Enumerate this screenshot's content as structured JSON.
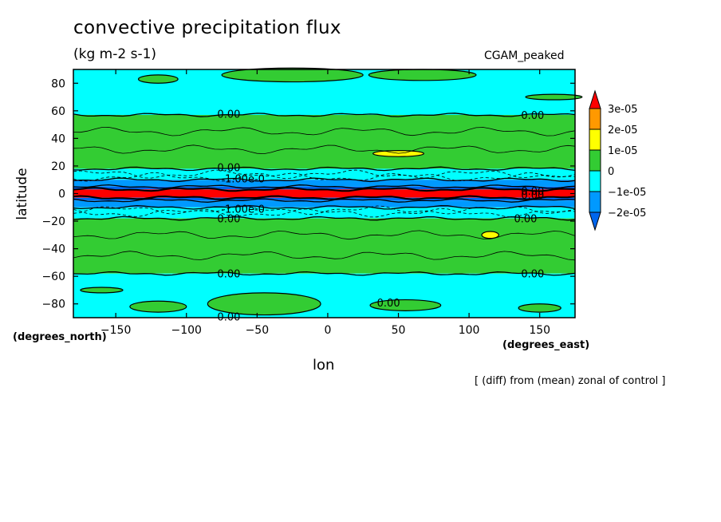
{
  "chart_data": {
    "type": "heatmap",
    "title": "convective precipitation flux",
    "units": "(kg m-2 s-1)",
    "run_name": "CGAM_peaked",
    "xlabel": "lon",
    "xunits": "(degrees_east)",
    "ylabel": "latitude",
    "yunits": "(degrees_north)",
    "xlim": [
      -180,
      175
    ],
    "ylim": [
      -90,
      90
    ],
    "x_ticks": [
      -150,
      -100,
      -50,
      0,
      50,
      100,
      150
    ],
    "x_tick_labels": [
      "−150",
      "−100",
      "−50",
      "0",
      "50",
      "100",
      "150"
    ],
    "y_ticks": [
      80,
      60,
      40,
      20,
      0,
      -20,
      -40,
      -60,
      -80
    ],
    "y_tick_labels": [
      "80",
      "60",
      "40",
      "20",
      "0",
      "−20",
      "−40",
      "−60",
      "−80"
    ],
    "colorbar": {
      "labels": [
        "3e-05",
        "2e-05",
        "1e-05",
        "0",
        "−1e-05",
        "−2e-05"
      ],
      "levels": [
        3e-05,
        2e-05,
        1e-05,
        0,
        -1e-05,
        -2e-05
      ],
      "colors": [
        "#ff0000",
        "#ff9900",
        "#ffff00",
        "#33cc33",
        "#00ffff",
        "#0099ff",
        "#0066ee"
      ]
    },
    "bands": [
      {
        "lat_min": 57,
        "lat_max": 90,
        "level": "-1e-05 to 0",
        "color": "#00ffff"
      },
      {
        "lat_min": 18,
        "lat_max": 57,
        "level": "0 to 1e-05",
        "color": "#33cc33"
      },
      {
        "lat_min": 10,
        "lat_max": 18,
        "level": "-1e-05 to 0",
        "color": "#00ffff"
      },
      {
        "lat_min": 5,
        "lat_max": 10,
        "level": "-2e-05 to -1e-05",
        "color": "#0099ff"
      },
      {
        "lat_min": 3,
        "lat_max": 5,
        "level": "< -2e-05",
        "color": "#0066ee"
      },
      {
        "lat_min": -3,
        "lat_max": 3,
        "level": "> 3e-05",
        "color": "#ff0000"
      },
      {
        "lat_min": -5,
        "lat_max": -3,
        "level": "< -2e-05",
        "color": "#0066ee"
      },
      {
        "lat_min": -10,
        "lat_max": -5,
        "level": "-2e-05 to -1e-05",
        "color": "#0099ff"
      },
      {
        "lat_min": -18,
        "lat_max": -10,
        "level": "-1e-05 to 0",
        "color": "#00ffff"
      },
      {
        "lat_min": -58,
        "lat_max": -18,
        "level": "0 to 1e-05",
        "color": "#33cc33"
      },
      {
        "lat_min": -90,
        "lat_max": -58,
        "level": "-1e-05 to 0",
        "color": "#00ffff"
      }
    ],
    "contour_labels": [
      {
        "text": "0.00",
        "lon": -70,
        "lat": 58
      },
      {
        "text": "0.00",
        "lon": 145,
        "lat": 57
      },
      {
        "text": "0.00",
        "lon": -70,
        "lat": 19
      },
      {
        "text": "0.00",
        "lon": -70,
        "lat": -18
      },
      {
        "text": "0.00",
        "lon": 140,
        "lat": -18
      },
      {
        "text": "0.00",
        "lon": -70,
        "lat": -58
      },
      {
        "text": "0.00",
        "lon": 145,
        "lat": -58
      },
      {
        "text": "0.00",
        "lon": 43,
        "lat": -79
      },
      {
        "text": "0.00",
        "lon": -70,
        "lat": -89
      },
      {
        "text": "0.00",
        "lon": 145,
        "lat": 2
      },
      {
        "text": "0.00",
        "lon": 145,
        "lat": -1
      },
      {
        "text": "-1.00e-0",
        "lon": -60,
        "lat": 11
      },
      {
        "text": "-1.00e-0",
        "lon": -60,
        "lat": -11
      }
    ]
  },
  "footnote": "[ (diff) from (mean) zonal of control ]"
}
